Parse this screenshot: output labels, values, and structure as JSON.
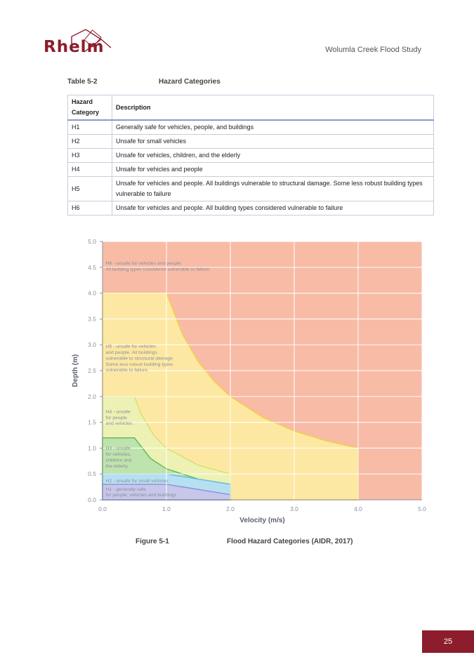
{
  "header": {
    "logo_text": "Rhelm",
    "title": "Wolumla Creek Flood Study"
  },
  "table": {
    "caption_number": "Table 5-2",
    "caption_title": "Hazard Categories",
    "headers": [
      "Hazard Category",
      "Description"
    ],
    "rows": [
      [
        "H1",
        "Generally safe for vehicles, people, and buildings"
      ],
      [
        "H2",
        "Unsafe for small vehicles"
      ],
      [
        "H3",
        "Unsafe for vehicles, children, and the elderly"
      ],
      [
        "H4",
        "Unsafe for vehicles and people"
      ],
      [
        "H5",
        "Unsafe for vehicles and people. All buildings vulnerable to structural damage. Some less robust building types vulnerable to failure"
      ],
      [
        "H6",
        "Unsafe for vehicles and people. All building types considered vulnerable to failure"
      ]
    ]
  },
  "chart_data": {
    "type": "area",
    "xlabel": "Velocity (m/s)",
    "ylabel": "Depth (m)",
    "xlim": [
      0,
      5
    ],
    "ylim": [
      0,
      5
    ],
    "xticks": [
      "0.0",
      "1.0",
      "2.0",
      "3.0",
      "4.0",
      "5.0"
    ],
    "yticks": [
      "0.0",
      "0.5",
      "1.0",
      "1.5",
      "2.0",
      "2.5",
      "3.0",
      "3.5",
      "4.0",
      "4.5",
      "5.0"
    ],
    "grid": true,
    "series": [
      {
        "name": "H6",
        "color": "#f8bba6",
        "points": [
          [
            0,
            0
          ],
          [
            5,
            0
          ],
          [
            5,
            5
          ],
          [
            0,
            5
          ]
        ]
      },
      {
        "name": "H5",
        "color": "#fde8a3",
        "stroke": "#f3d23d",
        "points": [
          [
            0,
            0
          ],
          [
            4,
            0
          ],
          [
            4,
            1
          ],
          [
            3.5,
            1.14
          ],
          [
            3,
            1.33
          ],
          [
            2.5,
            1.6
          ],
          [
            2,
            2
          ],
          [
            1.75,
            2.29
          ],
          [
            1.5,
            2.67
          ],
          [
            1.25,
            3.2
          ],
          [
            1,
            4
          ],
          [
            0,
            4
          ]
        ]
      },
      {
        "name": "H4",
        "color": "#eef1b4",
        "stroke": "#d4e06a",
        "points": [
          [
            0,
            0
          ],
          [
            2,
            0
          ],
          [
            2,
            0.5
          ],
          [
            1.5,
            0.67
          ],
          [
            1,
            1
          ],
          [
            0.8,
            1.25
          ],
          [
            0.6,
            1.67
          ],
          [
            0.5,
            2
          ],
          [
            0,
            2
          ]
        ]
      },
      {
        "name": "H3",
        "color": "#bfe3ad",
        "stroke": "#57b85b",
        "points": [
          [
            0,
            0
          ],
          [
            2,
            0
          ],
          [
            2,
            0.3
          ],
          [
            1.5,
            0.4
          ],
          [
            1,
            0.6
          ],
          [
            0.75,
            0.8
          ],
          [
            0.5,
            1.2
          ],
          [
            0,
            1.2
          ]
        ]
      },
      {
        "name": "H2",
        "color": "#b6e0f1",
        "stroke": "#5fbde6",
        "points": [
          [
            0,
            0
          ],
          [
            2,
            0
          ],
          [
            2,
            0.3
          ],
          [
            1,
            0.5
          ],
          [
            0,
            0.5
          ]
        ]
      },
      {
        "name": "H1",
        "color": "#c6c7ea",
        "stroke": "#8f8fd6",
        "points": [
          [
            0,
            0
          ],
          [
            2,
            0
          ],
          [
            2,
            0.1
          ],
          [
            1,
            0.3
          ],
          [
            0,
            0.3
          ]
        ]
      }
    ],
    "annotations": [
      {
        "lines": [
          "H6 - unsafe for vehicles and people.",
          "All building types considered vulnerable to failure."
        ],
        "x": 0.05,
        "y": 4.55
      },
      {
        "lines": [
          "H5 - unsafe for vehicles",
          "and people. All buildings",
          "vulnerable to structural damage.",
          "Some less robust building types",
          "vulnerable to failure."
        ],
        "x": 0.05,
        "y": 2.94
      },
      {
        "lines": [
          "H4 - unsafe",
          "for people",
          "and vehicles."
        ],
        "x": 0.05,
        "y": 1.68
      },
      {
        "lines": [
          "H3 - unsafe",
          "for vehicles,",
          "children and",
          "the elderly"
        ],
        "x": 0.05,
        "y": 0.97
      },
      {
        "lines": [
          "H2 - unsafe for small vehicles"
        ],
        "x": 0.05,
        "y": 0.34
      },
      {
        "lines": [
          "H1 - generally safe",
          "for people, vehicles and buildings"
        ],
        "x": 0.05,
        "y": 0.18
      }
    ]
  },
  "figure": {
    "caption_number": "Figure 5-1",
    "caption_title": "Flood Hazard Categories (AIDR, 2017)"
  },
  "page_number": "25"
}
